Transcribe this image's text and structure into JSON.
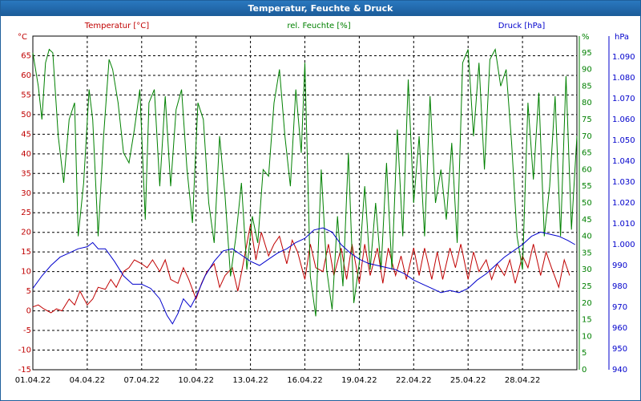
{
  "window": {
    "title": "Temperatur, Feuchte & Druck"
  },
  "chart_data": {
    "type": "line",
    "title": "Temperatur, Feuchte & Druck",
    "x": {
      "start": "2022-04-01",
      "end": "2022-05-01",
      "tick_labels": [
        "01.04.22",
        "04.04.22",
        "07.04.22",
        "10.04.22",
        "13.04.22",
        "16.04.22",
        "19.04.22",
        "22.04.22",
        "25.04.22",
        "28.04.22"
      ],
      "tick_days": [
        0,
        3,
        6,
        9,
        12,
        15,
        18,
        21,
        24,
        27
      ]
    },
    "grid": true,
    "axes": {
      "temperature": {
        "unit": "°C",
        "min": -15,
        "max": 70,
        "ticks": [
          -15,
          -10,
          -5,
          0,
          5,
          10,
          15,
          20,
          25,
          30,
          35,
          40,
          45,
          50,
          55,
          60,
          65
        ],
        "color": "#c00000"
      },
      "humidity": {
        "unit": "%",
        "min": 0,
        "max": 100,
        "ticks": [
          0,
          5,
          10,
          15,
          20,
          25,
          30,
          35,
          40,
          45,
          50,
          55,
          60,
          65,
          70,
          75,
          80,
          85,
          90,
          95
        ],
        "color": "#008000"
      },
      "pressure": {
        "unit": "hPa",
        "min": 940,
        "max": 1100,
        "ticks": [
          940,
          950,
          960,
          970,
          980,
          990,
          1000,
          1010,
          1020,
          1030,
          1040,
          1050,
          1060,
          1070,
          1080,
          1090
        ],
        "color": "#0000cc"
      }
    },
    "series": [
      {
        "name": "Temperatur [°C]",
        "axis": "temperature",
        "color": "#c00000",
        "points": [
          [
            0,
            1
          ],
          [
            0.3,
            1.5
          ],
          [
            0.6,
            0.5
          ],
          [
            1,
            -0.5
          ],
          [
            1.3,
            0.5
          ],
          [
            1.6,
            0
          ],
          [
            2,
            3
          ],
          [
            2.3,
            1.5
          ],
          [
            2.6,
            5
          ],
          [
            3,
            1.5
          ],
          [
            3.3,
            3
          ],
          [
            3.6,
            6
          ],
          [
            4,
            5.5
          ],
          [
            4.3,
            8
          ],
          [
            4.6,
            6
          ],
          [
            5,
            10
          ],
          [
            5.3,
            11
          ],
          [
            5.6,
            13
          ],
          [
            6,
            12
          ],
          [
            6.3,
            11
          ],
          [
            6.6,
            13
          ],
          [
            7,
            10
          ],
          [
            7.3,
            13
          ],
          [
            7.6,
            8
          ],
          [
            8,
            7
          ],
          [
            8.3,
            11
          ],
          [
            8.6,
            8
          ],
          [
            9,
            3
          ],
          [
            9.3,
            7
          ],
          [
            9.6,
            10
          ],
          [
            10,
            12
          ],
          [
            10.3,
            6
          ],
          [
            10.6,
            9
          ],
          [
            11,
            11
          ],
          [
            11.3,
            5
          ],
          [
            11.6,
            12
          ],
          [
            12,
            22
          ],
          [
            12.3,
            13
          ],
          [
            12.6,
            20
          ],
          [
            13,
            14
          ],
          [
            13.3,
            17
          ],
          [
            13.6,
            19
          ],
          [
            14,
            12
          ],
          [
            14.3,
            18
          ],
          [
            14.6,
            15
          ],
          [
            15,
            8
          ],
          [
            15.3,
            17
          ],
          [
            15.6,
            11
          ],
          [
            16,
            10
          ],
          [
            16.3,
            17
          ],
          [
            16.6,
            9
          ],
          [
            17,
            16
          ],
          [
            17.3,
            8
          ],
          [
            17.6,
            17
          ],
          [
            18,
            7
          ],
          [
            18.3,
            17
          ],
          [
            18.6,
            9
          ],
          [
            19,
            16
          ],
          [
            19.3,
            7
          ],
          [
            19.6,
            16
          ],
          [
            20,
            9
          ],
          [
            20.3,
            14
          ],
          [
            20.6,
            8
          ],
          [
            21,
            16
          ],
          [
            21.3,
            9
          ],
          [
            21.6,
            16
          ],
          [
            22,
            8
          ],
          [
            22.3,
            15
          ],
          [
            22.6,
            8
          ],
          [
            23,
            16
          ],
          [
            23.3,
            11
          ],
          [
            23.6,
            17
          ],
          [
            24,
            8
          ],
          [
            24.3,
            15
          ],
          [
            24.6,
            10
          ],
          [
            25,
            13
          ],
          [
            25.3,
            8
          ],
          [
            25.6,
            12
          ],
          [
            26,
            9
          ],
          [
            26.3,
            13
          ],
          [
            26.6,
            7
          ],
          [
            27,
            14
          ],
          [
            27.3,
            11
          ],
          [
            27.6,
            17
          ],
          [
            28,
            9
          ],
          [
            28.3,
            15
          ],
          [
            28.6,
            11
          ],
          [
            29,
            6
          ],
          [
            29.3,
            13
          ],
          [
            29.6,
            9
          ]
        ]
      },
      {
        "name": "rel. Feuchte [%]",
        "axis": "humidity",
        "color": "#008000",
        "points": [
          [
            0,
            95
          ],
          [
            0.3,
            85
          ],
          [
            0.5,
            75
          ],
          [
            0.7,
            92
          ],
          [
            0.9,
            96
          ],
          [
            1.1,
            95
          ],
          [
            1.4,
            70
          ],
          [
            1.7,
            56
          ],
          [
            2,
            75
          ],
          [
            2.3,
            80
          ],
          [
            2.5,
            40
          ],
          [
            2.8,
            56
          ],
          [
            3.1,
            84
          ],
          [
            3.3,
            75
          ],
          [
            3.6,
            40
          ],
          [
            3.9,
            70
          ],
          [
            4.2,
            93
          ],
          [
            4.4,
            90
          ],
          [
            4.7,
            80
          ],
          [
            5,
            65
          ],
          [
            5.3,
            62
          ],
          [
            5.6,
            72
          ],
          [
            5.9,
            84
          ],
          [
            6.2,
            45
          ],
          [
            6.4,
            80
          ],
          [
            6.7,
            84
          ],
          [
            7,
            55
          ],
          [
            7.3,
            82
          ],
          [
            7.6,
            55
          ],
          [
            7.9,
            78
          ],
          [
            8.2,
            84
          ],
          [
            8.5,
            60
          ],
          [
            8.8,
            44
          ],
          [
            9.1,
            80
          ],
          [
            9.4,
            75
          ],
          [
            9.7,
            50
          ],
          [
            10,
            38
          ],
          [
            10.3,
            70
          ],
          [
            10.6,
            52
          ],
          [
            10.9,
            28
          ],
          [
            11.2,
            40
          ],
          [
            11.5,
            56
          ],
          [
            11.8,
            30
          ],
          [
            12.1,
            46
          ],
          [
            12.4,
            38
          ],
          [
            12.7,
            60
          ],
          [
            13,
            58
          ],
          [
            13.3,
            80
          ],
          [
            13.6,
            90
          ],
          [
            13.9,
            70
          ],
          [
            14.2,
            55
          ],
          [
            14.5,
            84
          ],
          [
            14.8,
            65
          ],
          [
            15,
            92
          ],
          [
            15.3,
            28
          ],
          [
            15.6,
            16
          ],
          [
            15.9,
            60
          ],
          [
            16.2,
            30
          ],
          [
            16.5,
            18
          ],
          [
            16.8,
            46
          ],
          [
            17.1,
            25
          ],
          [
            17.4,
            65
          ],
          [
            17.7,
            20
          ],
          [
            18,
            32
          ],
          [
            18.3,
            55
          ],
          [
            18.6,
            30
          ],
          [
            18.9,
            50
          ],
          [
            19.2,
            30
          ],
          [
            19.5,
            62
          ],
          [
            19.8,
            30
          ],
          [
            20.1,
            72
          ],
          [
            20.4,
            40
          ],
          [
            20.7,
            87
          ],
          [
            21,
            50
          ],
          [
            21.3,
            70
          ],
          [
            21.6,
            40
          ],
          [
            21.9,
            82
          ],
          [
            22.2,
            50
          ],
          [
            22.5,
            60
          ],
          [
            22.8,
            45
          ],
          [
            23.1,
            68
          ],
          [
            23.4,
            38
          ],
          [
            23.7,
            92
          ],
          [
            24,
            96
          ],
          [
            24.3,
            70
          ],
          [
            24.6,
            92
          ],
          [
            24.9,
            60
          ],
          [
            25.2,
            93
          ],
          [
            25.5,
            96
          ],
          [
            25.8,
            85
          ],
          [
            26.1,
            90
          ],
          [
            26.4,
            68
          ],
          [
            26.7,
            40
          ],
          [
            27,
            30
          ],
          [
            27.3,
            80
          ],
          [
            27.6,
            57
          ],
          [
            27.9,
            83
          ],
          [
            28.2,
            40
          ],
          [
            28.5,
            55
          ],
          [
            28.8,
            82
          ],
          [
            29.1,
            40
          ],
          [
            29.4,
            88
          ],
          [
            29.7,
            42
          ],
          [
            30,
            70
          ]
        ]
      },
      {
        "name": "Druck [hPa]",
        "axis": "pressure",
        "color": "#0000cc",
        "points": [
          [
            0,
            979
          ],
          [
            0.5,
            985
          ],
          [
            1,
            990
          ],
          [
            1.5,
            994
          ],
          [
            2,
            996
          ],
          [
            2.5,
            998
          ],
          [
            3,
            999
          ],
          [
            3.3,
            1001
          ],
          [
            3.6,
            998
          ],
          [
            4,
            998
          ],
          [
            4.5,
            992
          ],
          [
            5,
            985
          ],
          [
            5.5,
            981
          ],
          [
            6,
            981
          ],
          [
            6.5,
            979
          ],
          [
            7,
            974
          ],
          [
            7.4,
            966
          ],
          [
            7.7,
            962
          ],
          [
            8,
            967
          ],
          [
            8.3,
            974
          ],
          [
            8.7,
            970
          ],
          [
            9,
            975
          ],
          [
            9.5,
            985
          ],
          [
            10,
            992
          ],
          [
            10.5,
            997
          ],
          [
            11,
            998
          ],
          [
            11.5,
            995
          ],
          [
            12,
            992
          ],
          [
            12.5,
            990
          ],
          [
            13,
            993
          ],
          [
            13.5,
            996
          ],
          [
            14,
            998
          ],
          [
            14.5,
            1001
          ],
          [
            15,
            1003
          ],
          [
            15.5,
            1007
          ],
          [
            16,
            1008
          ],
          [
            16.5,
            1006
          ],
          [
            17,
            1000
          ],
          [
            17.5,
            996
          ],
          [
            18,
            993
          ],
          [
            18.5,
            991
          ],
          [
            19,
            990
          ],
          [
            19.5,
            989
          ],
          [
            20,
            988
          ],
          [
            20.5,
            986
          ],
          [
            21,
            983
          ],
          [
            21.5,
            981
          ],
          [
            22,
            979
          ],
          [
            22.5,
            977
          ],
          [
            23,
            978
          ],
          [
            23.5,
            977
          ],
          [
            24,
            979
          ],
          [
            24.5,
            983
          ],
          [
            25,
            986
          ],
          [
            25.5,
            990
          ],
          [
            26,
            994
          ],
          [
            26.5,
            997
          ],
          [
            27,
            1000
          ],
          [
            27.5,
            1004
          ],
          [
            28,
            1006
          ],
          [
            28.5,
            1005
          ],
          [
            29,
            1004
          ],
          [
            29.5,
            1002
          ],
          [
            29.9,
            1000
          ]
        ]
      }
    ],
    "axis_labels": {
      "left_unit": "°C",
      "temperature_header": "Temperatur [°C]",
      "humidity_header": "rel. Feuchte [%]",
      "humidity_unit": "%",
      "pressure_header": "Druck [hPa]",
      "pressure_unit": "hPa"
    }
  }
}
